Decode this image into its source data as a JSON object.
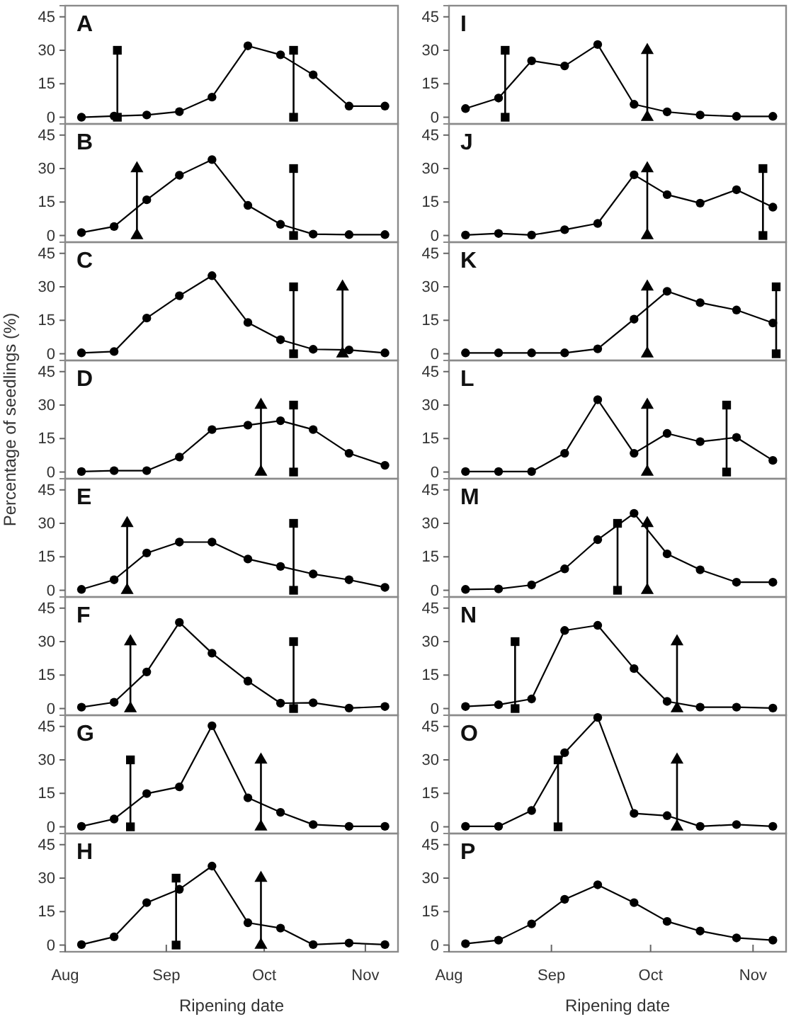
{
  "chart_data": [
    {
      "type": "line",
      "title": "A",
      "x": [
        "--08-06",
        "--08-16",
        "--08-26",
        "--09-05",
        "--09-15",
        "--09-26",
        "--10-06",
        "--10-16",
        "--10-27",
        "--11-07"
      ],
      "xlim": [
        "--08-01",
        "--11-11"
      ],
      "ylim": [
        -3,
        50
      ],
      "yticks": [
        0,
        15,
        30,
        45
      ],
      "tick_labels": "y",
      "series": [
        {
          "color": "#000000",
          "marker": "circle",
          "values": [
            0,
            0.5,
            1,
            2.5,
            9,
            32,
            28,
            19,
            5,
            5
          ]
        },
        {
          "color": "#000000",
          "marker": "square",
          "x": [
            "--08-17",
            "--08-17"
          ],
          "values": [
            0,
            30
          ]
        },
        {
          "color": "#000000",
          "marker": "square",
          "x": [
            "--10-10",
            "--10-10"
          ],
          "values": [
            0,
            30
          ]
        }
      ]
    },
    {
      "type": "line",
      "title": "B",
      "x": [
        "--08-06",
        "--08-16",
        "--08-26",
        "--09-05",
        "--09-15",
        "--09-26",
        "--10-06",
        "--10-16",
        "--10-27",
        "--11-07"
      ],
      "xlim": [
        "--08-01",
        "--11-11"
      ],
      "ylim": [
        -3,
        50
      ],
      "yticks": [
        0,
        15,
        30,
        45
      ],
      "tick_labels": "y",
      "series": [
        {
          "color": "#000000",
          "marker": "circle",
          "values": [
            1.3,
            4,
            16,
            27,
            34,
            13.5,
            5,
            0.6,
            0.4,
            0.4
          ]
        },
        {
          "color": "#000000",
          "marker": "triangle",
          "x": [
            "--08-23",
            "--08-23"
          ],
          "values": [
            0,
            30
          ]
        },
        {
          "color": "#000000",
          "marker": "square",
          "x": [
            "--10-10",
            "--10-10"
          ],
          "values": [
            0,
            30
          ]
        }
      ]
    },
    {
      "type": "line",
      "title": "C",
      "x": [
        "--08-06",
        "--08-16",
        "--08-26",
        "--09-05",
        "--09-15",
        "--09-26",
        "--10-06",
        "--10-16",
        "--10-27",
        "--11-07"
      ],
      "xlim": [
        "--08-01",
        "--11-11"
      ],
      "ylim": [
        -3,
        50
      ],
      "yticks": [
        0,
        15,
        30,
        45
      ],
      "tick_labels": "y",
      "series": [
        {
          "color": "#000000",
          "marker": "circle",
          "values": [
            0.4,
            1,
            16,
            26,
            35,
            14,
            6.3,
            2,
            1.7,
            0.4
          ]
        },
        {
          "color": "#000000",
          "marker": "square",
          "x": [
            "--10-10",
            "--10-10"
          ],
          "values": [
            0,
            30
          ]
        },
        {
          "color": "#000000",
          "marker": "triangle",
          "x": [
            "--10-25",
            "--10-25"
          ],
          "values": [
            0,
            30
          ]
        }
      ]
    },
    {
      "type": "line",
      "title": "D",
      "ylabel": "Percentage of seedlings (%)",
      "x": [
        "--08-06",
        "--08-16",
        "--08-26",
        "--09-05",
        "--09-15",
        "--09-26",
        "--10-06",
        "--10-16",
        "--10-27",
        "--11-07"
      ],
      "xlim": [
        "--08-01",
        "--11-11"
      ],
      "ylim": [
        -3,
        50
      ],
      "yticks": [
        0,
        15,
        30,
        45
      ],
      "tick_labels": "y",
      "series": [
        {
          "color": "#000000",
          "marker": "circle",
          "values": [
            0.2,
            0.6,
            0.6,
            6.7,
            19,
            21,
            23,
            19,
            8.4,
            3
          ]
        },
        {
          "color": "#000000",
          "marker": "triangle",
          "x": [
            "--09-30",
            "--09-30"
          ],
          "values": [
            0,
            30
          ]
        },
        {
          "color": "#000000",
          "marker": "square",
          "x": [
            "--10-10",
            "--10-10"
          ],
          "values": [
            0,
            30
          ]
        }
      ]
    },
    {
      "type": "line",
      "title": "E",
      "x": [
        "--08-06",
        "--08-16",
        "--08-26",
        "--09-05",
        "--09-15",
        "--09-26",
        "--10-06",
        "--10-16",
        "--10-27",
        "--11-07"
      ],
      "xlim": [
        "--08-01",
        "--11-11"
      ],
      "ylim": [
        -3,
        50
      ],
      "yticks": [
        0,
        15,
        30,
        45
      ],
      "tick_labels": "y",
      "series": [
        {
          "color": "#000000",
          "marker": "circle",
          "values": [
            0.4,
            4.7,
            16.7,
            21.6,
            21.6,
            14,
            10.7,
            7.3,
            4.7,
            1.3
          ]
        },
        {
          "color": "#000000",
          "marker": "triangle",
          "x": [
            "--08-20",
            "--08-20"
          ],
          "values": [
            0,
            30
          ]
        },
        {
          "color": "#000000",
          "marker": "square",
          "x": [
            "--10-10",
            "--10-10"
          ],
          "values": [
            0,
            30
          ]
        }
      ]
    },
    {
      "type": "line",
      "title": "F",
      "x": [
        "--08-06",
        "--08-16",
        "--08-26",
        "--09-05",
        "--09-15",
        "--09-26",
        "--10-06",
        "--10-16",
        "--10-27",
        "--11-07"
      ],
      "xlim": [
        "--08-01",
        "--11-11"
      ],
      "ylim": [
        -3,
        50
      ],
      "yticks": [
        0,
        15,
        30,
        45
      ],
      "tick_labels": "y",
      "series": [
        {
          "color": "#000000",
          "marker": "circle",
          "values": [
            0.6,
            2.8,
            16.4,
            38.6,
            24.8,
            12.3,
            2.4,
            2.6,
            0.2,
            0.9
          ]
        },
        {
          "color": "#000000",
          "marker": "triangle",
          "x": [
            "--08-21",
            "--08-21"
          ],
          "values": [
            0,
            30
          ]
        },
        {
          "color": "#000000",
          "marker": "square",
          "x": [
            "--10-10",
            "--10-10"
          ],
          "values": [
            0,
            30
          ]
        }
      ]
    },
    {
      "type": "line",
      "title": "G",
      "x": [
        "--08-06",
        "--08-16",
        "--08-26",
        "--09-05",
        "--09-15",
        "--09-26",
        "--10-06",
        "--10-16",
        "--10-27",
        "--11-07"
      ],
      "xlim": [
        "--08-01",
        "--11-11"
      ],
      "ylim": [
        -3,
        50
      ],
      "yticks": [
        0,
        15,
        30,
        45
      ],
      "tick_labels": "y",
      "series": [
        {
          "color": "#000000",
          "marker": "circle",
          "values": [
            0.2,
            3.5,
            14.9,
            17.9,
            45.3,
            13,
            6.5,
            1,
            0.2,
            0.2
          ]
        },
        {
          "color": "#000000",
          "marker": "square",
          "x": [
            "--08-21",
            "--08-21"
          ],
          "values": [
            0,
            30
          ]
        },
        {
          "color": "#000000",
          "marker": "triangle",
          "x": [
            "--09-30",
            "--09-30"
          ],
          "values": [
            0,
            30
          ]
        }
      ]
    },
    {
      "type": "line",
      "title": "H",
      "xlabel": "Ripening date",
      "x": [
        "--08-06",
        "--08-16",
        "--08-26",
        "--09-05",
        "--09-15",
        "--09-26",
        "--10-06",
        "--10-16",
        "--10-27",
        "--11-07"
      ],
      "xlim": [
        "--08-01",
        "--11-11"
      ],
      "xticks": [
        {
          "value": "--08-01",
          "label": "Aug"
        },
        {
          "value": "--09-01",
          "label": "Sep"
        },
        {
          "value": "--10-01",
          "label": "Oct"
        },
        {
          "value": "--11-01",
          "label": "Nov"
        }
      ],
      "ylim": [
        -3,
        50
      ],
      "yticks": [
        0,
        15,
        30,
        45
      ],
      "series": [
        {
          "color": "#000000",
          "marker": "circle",
          "values": [
            0.2,
            3.7,
            19,
            25,
            35.4,
            10,
            7.6,
            0.2,
            0.9,
            0.2
          ]
        },
        {
          "color": "#000000",
          "marker": "square",
          "x": [
            "--09-04",
            "--09-04"
          ],
          "values": [
            0,
            30
          ]
        },
        {
          "color": "#000000",
          "marker": "triangle",
          "x": [
            "--09-30",
            "--09-30"
          ],
          "values": [
            0,
            30
          ]
        }
      ]
    },
    {
      "type": "line",
      "title": "I",
      "x": [
        "--08-06",
        "--08-16",
        "--08-26",
        "--09-05",
        "--09-15",
        "--09-26",
        "--10-06",
        "--10-16",
        "--10-27",
        "--11-07"
      ],
      "xlim": [
        "--08-01",
        "--11-11"
      ],
      "ylim": [
        -3,
        50
      ],
      "yticks": [
        0,
        15,
        30,
        45
      ],
      "tick_labels": "y",
      "series": [
        {
          "color": "#000000",
          "marker": "circle",
          "values": [
            3.9,
            8.6,
            25.3,
            23,
            32.6,
            5.8,
            2.4,
            1,
            0.4,
            0.4
          ]
        },
        {
          "color": "#000000",
          "marker": "square",
          "x": [
            "--08-18",
            "--08-18"
          ],
          "values": [
            0,
            30
          ]
        },
        {
          "color": "#000000",
          "marker": "triangle",
          "x": [
            "--09-30",
            "--09-30"
          ],
          "values": [
            0,
            30
          ]
        }
      ]
    },
    {
      "type": "line",
      "title": "J",
      "x": [
        "--08-06",
        "--08-16",
        "--08-26",
        "--09-05",
        "--09-15",
        "--09-26",
        "--10-06",
        "--10-16",
        "--10-27",
        "--11-07"
      ],
      "xlim": [
        "--08-01",
        "--11-11"
      ],
      "ylim": [
        -3,
        50
      ],
      "yticks": [
        0,
        15,
        30,
        45
      ],
      "tick_labels": "y",
      "series": [
        {
          "color": "#000000",
          "marker": "circle",
          "values": [
            0.2,
            0.9,
            0.2,
            2.6,
            5.4,
            27.2,
            18.3,
            14.5,
            20.5,
            12.7
          ]
        },
        {
          "color": "#000000",
          "marker": "triangle",
          "x": [
            "--09-30",
            "--09-30"
          ],
          "values": [
            0,
            30
          ]
        },
        {
          "color": "#000000",
          "marker": "square",
          "x": [
            "--11-04",
            "--11-04"
          ],
          "values": [
            0,
            30
          ]
        }
      ]
    },
    {
      "type": "line",
      "title": "K",
      "x": [
        "--08-06",
        "--08-16",
        "--08-26",
        "--09-05",
        "--09-15",
        "--09-26",
        "--10-06",
        "--10-16",
        "--10-27",
        "--11-07"
      ],
      "xlim": [
        "--08-01",
        "--11-11"
      ],
      "ylim": [
        -3,
        50
      ],
      "yticks": [
        0,
        15,
        30,
        45
      ],
      "tick_labels": "y",
      "series": [
        {
          "color": "#000000",
          "marker": "circle",
          "values": [
            0.4,
            0.4,
            0.4,
            0.4,
            2.2,
            15.5,
            28,
            22.9,
            19.6,
            13.8
          ]
        },
        {
          "color": "#000000",
          "marker": "triangle",
          "x": [
            "--09-30",
            "--09-30"
          ],
          "values": [
            0,
            30
          ]
        },
        {
          "color": "#000000",
          "marker": "square",
          "x": [
            "--11-08",
            "--11-08"
          ],
          "values": [
            0,
            30
          ]
        }
      ]
    },
    {
      "type": "line",
      "title": "L",
      "x": [
        "--08-06",
        "--08-16",
        "--08-26",
        "--09-05",
        "--09-15",
        "--09-26",
        "--10-06",
        "--10-16",
        "--10-27",
        "--11-07"
      ],
      "xlim": [
        "--08-01",
        "--11-11"
      ],
      "ylim": [
        -3,
        50
      ],
      "yticks": [
        0,
        15,
        30,
        45
      ],
      "tick_labels": "y",
      "series": [
        {
          "color": "#000000",
          "marker": "circle",
          "values": [
            0.2,
            0.2,
            0.2,
            8.4,
            32.4,
            8.4,
            17.3,
            13.6,
            15.5,
            5.2
          ]
        },
        {
          "color": "#000000",
          "marker": "triangle",
          "x": [
            "--09-30",
            "--09-30"
          ],
          "values": [
            0,
            30
          ]
        },
        {
          "color": "#000000",
          "marker": "square",
          "x": [
            "--10-24",
            "--10-24"
          ],
          "values": [
            0,
            30
          ]
        }
      ]
    },
    {
      "type": "line",
      "title": "M",
      "x": [
        "--08-06",
        "--08-16",
        "--08-26",
        "--09-05",
        "--09-15",
        "--09-26",
        "--10-06",
        "--10-16",
        "--10-27",
        "--11-07"
      ],
      "xlim": [
        "--08-01",
        "--11-11"
      ],
      "ylim": [
        -3,
        50
      ],
      "yticks": [
        0,
        15,
        30,
        45
      ],
      "tick_labels": "y",
      "series": [
        {
          "color": "#000000",
          "marker": "circle",
          "values": [
            0.4,
            0.6,
            2.4,
            9.6,
            22.7,
            34.5,
            16.3,
            9.2,
            3.6,
            3.6
          ]
        },
        {
          "color": "#000000",
          "marker": "square",
          "x": [
            "--09-21",
            "--09-21"
          ],
          "values": [
            0,
            30
          ]
        },
        {
          "color": "#000000",
          "marker": "triangle",
          "x": [
            "--09-30",
            "--09-30"
          ],
          "values": [
            0,
            30
          ]
        }
      ]
    },
    {
      "type": "line",
      "title": "N",
      "x": [
        "--08-06",
        "--08-16",
        "--08-26",
        "--09-05",
        "--09-15",
        "--09-26",
        "--10-06",
        "--10-16",
        "--10-27",
        "--11-07"
      ],
      "xlim": [
        "--08-01",
        "--11-11"
      ],
      "ylim": [
        -3,
        50
      ],
      "yticks": [
        0,
        15,
        30,
        45
      ],
      "tick_labels": "y",
      "series": [
        {
          "color": "#000000",
          "marker": "circle",
          "values": [
            0.9,
            1.7,
            4.3,
            35,
            37.3,
            17.9,
            3.2,
            0.6,
            0.6,
            0.2
          ]
        },
        {
          "color": "#000000",
          "marker": "square",
          "x": [
            "--08-21",
            "--08-21"
          ],
          "values": [
            0,
            30
          ]
        },
        {
          "color": "#000000",
          "marker": "triangle",
          "x": [
            "--10-09",
            "--10-09"
          ],
          "values": [
            0,
            30
          ]
        }
      ]
    },
    {
      "type": "line",
      "title": "O",
      "x": [
        "--08-06",
        "--08-16",
        "--08-26",
        "--09-05",
        "--09-15",
        "--09-26",
        "--10-06",
        "--10-16",
        "--10-27",
        "--11-07"
      ],
      "xlim": [
        "--08-01",
        "--11-11"
      ],
      "ylim": [
        -3,
        50
      ],
      "yticks": [
        0,
        15,
        30,
        45
      ],
      "tick_labels": "y",
      "series": [
        {
          "color": "#000000",
          "marker": "circle",
          "values": [
            0.2,
            0.2,
            7.3,
            33.2,
            49,
            6,
            5,
            0.2,
            1,
            0.2
          ]
        },
        {
          "color": "#000000",
          "marker": "square",
          "x": [
            "--09-03",
            "--09-03"
          ],
          "values": [
            0,
            30
          ]
        },
        {
          "color": "#000000",
          "marker": "triangle",
          "x": [
            "--10-09",
            "--10-09"
          ],
          "values": [
            0,
            30
          ]
        }
      ]
    },
    {
      "type": "line",
      "title": "P",
      "xlabel": "Ripening date",
      "x": [
        "--08-06",
        "--08-16",
        "--08-26",
        "--09-05",
        "--09-15",
        "--09-26",
        "--10-06",
        "--10-16",
        "--10-27",
        "--11-07"
      ],
      "xlim": [
        "--08-01",
        "--11-11"
      ],
      "xticks": [
        {
          "value": "--08-01",
          "label": "Aug"
        },
        {
          "value": "--09-01",
          "label": "Sep"
        },
        {
          "value": "--10-01",
          "label": "Oct"
        },
        {
          "value": "--11-01",
          "label": "Nov"
        }
      ],
      "ylim": [
        -3,
        50
      ],
      "yticks": [
        0,
        15,
        30,
        45
      ],
      "series": [
        {
          "color": "#000000",
          "marker": "circle",
          "values": [
            0.6,
            2.2,
            9.5,
            20.5,
            27,
            19,
            10.6,
            6.3,
            3.2,
            2.2
          ]
        }
      ]
    }
  ]
}
